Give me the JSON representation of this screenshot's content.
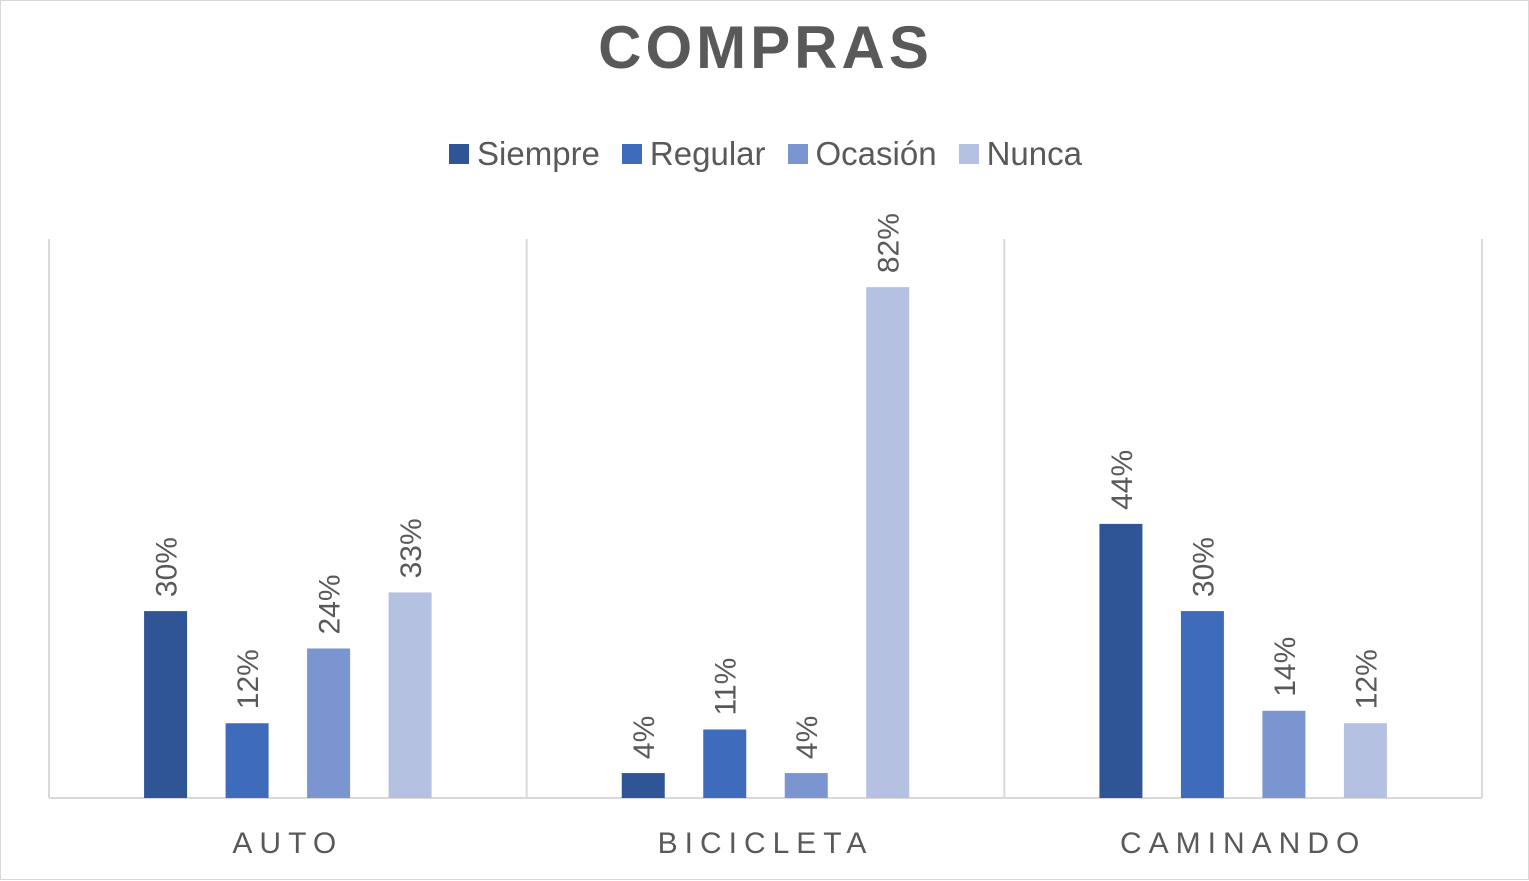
{
  "chart_data": {
    "type": "bar",
    "title": "COMPRAS",
    "categories": [
      "AUTO",
      "BICICLETA",
      "CAMINANDO"
    ],
    "series": [
      {
        "name": "Siempre",
        "color": "#2f5597",
        "values": [
          30,
          4,
          44
        ],
        "labels": [
          "30%",
          "4%",
          "44%"
        ]
      },
      {
        "name": "Regular",
        "color": "#3e6bba",
        "values": [
          12,
          11,
          30
        ],
        "labels": [
          "12%",
          "11%",
          "30%"
        ]
      },
      {
        "name": "Ocasión",
        "color": "#7b95d0",
        "values": [
          24,
          4,
          14
        ],
        "labels": [
          "24%",
          "4%",
          "14%"
        ]
      },
      {
        "name": "Nunca",
        "color": "#b4c1e0",
        "values": [
          33,
          82,
          12
        ],
        "labels": [
          "33%",
          "82%",
          "12%"
        ]
      }
    ],
    "ylim": [
      0,
      90
    ],
    "legend_position": "top",
    "grid": false,
    "axis_color": "#d9d9d9",
    "text_color": "#595959"
  }
}
